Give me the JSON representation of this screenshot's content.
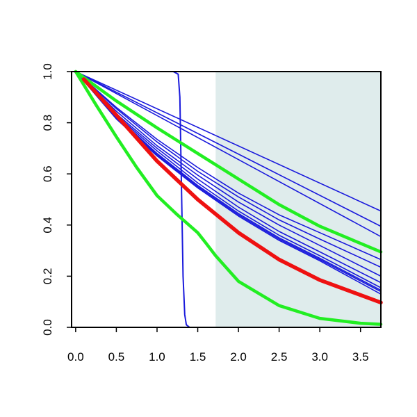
{
  "chart_data": {
    "type": "line",
    "title": "",
    "xlabel": "",
    "ylabel": "",
    "xlim": [
      -0.05,
      3.75
    ],
    "ylim": [
      0,
      1
    ],
    "grid": false,
    "legend": "none",
    "x_ticks": [
      "0.0",
      "0.5",
      "1.0",
      "1.5",
      "2.0",
      "2.5",
      "3.0",
      "3.5"
    ],
    "y_ticks": [
      "0.0",
      "0.2",
      "0.4",
      "0.6",
      "0.8",
      "1.0"
    ],
    "shaded_region": {
      "x_start": 1.72,
      "x_end": 3.75,
      "color": "#dfecec"
    },
    "series_colors": {
      "blue": "#1a1adc",
      "green": "#22ee22",
      "red": "#ee1111"
    },
    "series": [
      {
        "color": "blue",
        "width": 2,
        "x": [
          0,
          1.2,
          1.26,
          1.28,
          1.3,
          1.32,
          1.34,
          1.36,
          1.4,
          3.75
        ],
        "y": [
          1,
          1,
          0.99,
          0.9,
          0.55,
          0.2,
          0.05,
          0.01,
          0,
          0
        ]
      },
      {
        "color": "blue",
        "width": 1.6,
        "x": [
          0,
          3.75
        ],
        "y": [
          1,
          0.455
        ]
      },
      {
        "color": "blue",
        "width": 1.6,
        "x": [
          0,
          3.75
        ],
        "y": [
          1,
          0.395
        ]
      },
      {
        "color": "blue",
        "width": 1.6,
        "x": [
          0,
          3.75
        ],
        "y": [
          1,
          0.355
        ]
      },
      {
        "color": "blue",
        "width": 1.6,
        "x": [
          0,
          0.5,
          1.0,
          1.5,
          2.0,
          2.5,
          3.0,
          3.75
        ],
        "y": [
          1,
          0.86,
          0.735,
          0.625,
          0.525,
          0.44,
          0.37,
          0.265
        ]
      },
      {
        "color": "blue",
        "width": 1.6,
        "x": [
          0,
          0.5,
          1.0,
          1.5,
          2.0,
          2.5,
          3.0,
          3.75
        ],
        "y": [
          1,
          0.855,
          0.725,
          0.61,
          0.51,
          0.42,
          0.345,
          0.235
        ]
      },
      {
        "color": "blue",
        "width": 1.6,
        "x": [
          0,
          0.5,
          1.0,
          1.5,
          2.0,
          2.5,
          3.0,
          3.75
        ],
        "y": [
          1,
          0.845,
          0.71,
          0.595,
          0.49,
          0.4,
          0.32,
          0.2
        ]
      },
      {
        "color": "blue",
        "width": 1.6,
        "x": [
          0,
          0.5,
          1.0,
          1.5,
          2.0,
          2.5,
          3.0,
          3.75
        ],
        "y": [
          1,
          0.835,
          0.7,
          0.58,
          0.47,
          0.375,
          0.295,
          0.175
        ]
      },
      {
        "color": "blue",
        "width": 1.6,
        "x": [
          0,
          0.5,
          1.0,
          1.5,
          2.0,
          2.5,
          3.0,
          3.75
        ],
        "y": [
          1,
          0.83,
          0.69,
          0.565,
          0.455,
          0.36,
          0.28,
          0.155
        ]
      },
      {
        "color": "blue",
        "width": 1.6,
        "x": [
          0,
          0.5,
          1.0,
          1.5,
          2.0,
          2.5,
          3.0,
          3.75
        ],
        "y": [
          1,
          0.825,
          0.68,
          0.555,
          0.445,
          0.35,
          0.27,
          0.145
        ]
      },
      {
        "color": "blue",
        "width": 1.6,
        "x": [
          0,
          0.5,
          1.0,
          1.5,
          2.0,
          2.5,
          3.0,
          3.75
        ],
        "y": [
          1,
          0.82,
          0.675,
          0.55,
          0.44,
          0.345,
          0.265,
          0.14
        ]
      },
      {
        "color": "blue",
        "width": 1.6,
        "x": [
          0,
          0.5,
          1.0,
          1.5,
          2.0,
          2.5,
          3.0,
          3.75
        ],
        "y": [
          1,
          0.815,
          0.67,
          0.545,
          0.435,
          0.34,
          0.26,
          0.13
        ]
      },
      {
        "color": "green",
        "width": 4.5,
        "x": [
          0,
          0.5,
          1.0,
          1.5,
          2.0,
          2.5,
          3.0,
          3.75
        ],
        "y": [
          1,
          0.885,
          0.78,
          0.68,
          0.58,
          0.48,
          0.395,
          0.295
        ]
      },
      {
        "color": "green",
        "width": 4.5,
        "x": [
          0,
          0.25,
          0.5,
          0.75,
          1.0,
          1.25,
          1.5,
          1.6,
          1.72,
          2.0,
          2.5,
          3.0,
          3.5,
          3.75
        ],
        "y": [
          1,
          0.87,
          0.745,
          0.625,
          0.515,
          0.44,
          0.37,
          0.33,
          0.28,
          0.18,
          0.085,
          0.035,
          0.016,
          0.012
        ]
      },
      {
        "color": "red",
        "width": 5.5,
        "x": [
          0.1,
          0.5,
          1.0,
          1.5,
          2.0,
          2.5,
          3.0,
          3.75
        ],
        "y": [
          0.97,
          0.83,
          0.65,
          0.5,
          0.37,
          0.265,
          0.185,
          0.097
        ]
      }
    ]
  }
}
